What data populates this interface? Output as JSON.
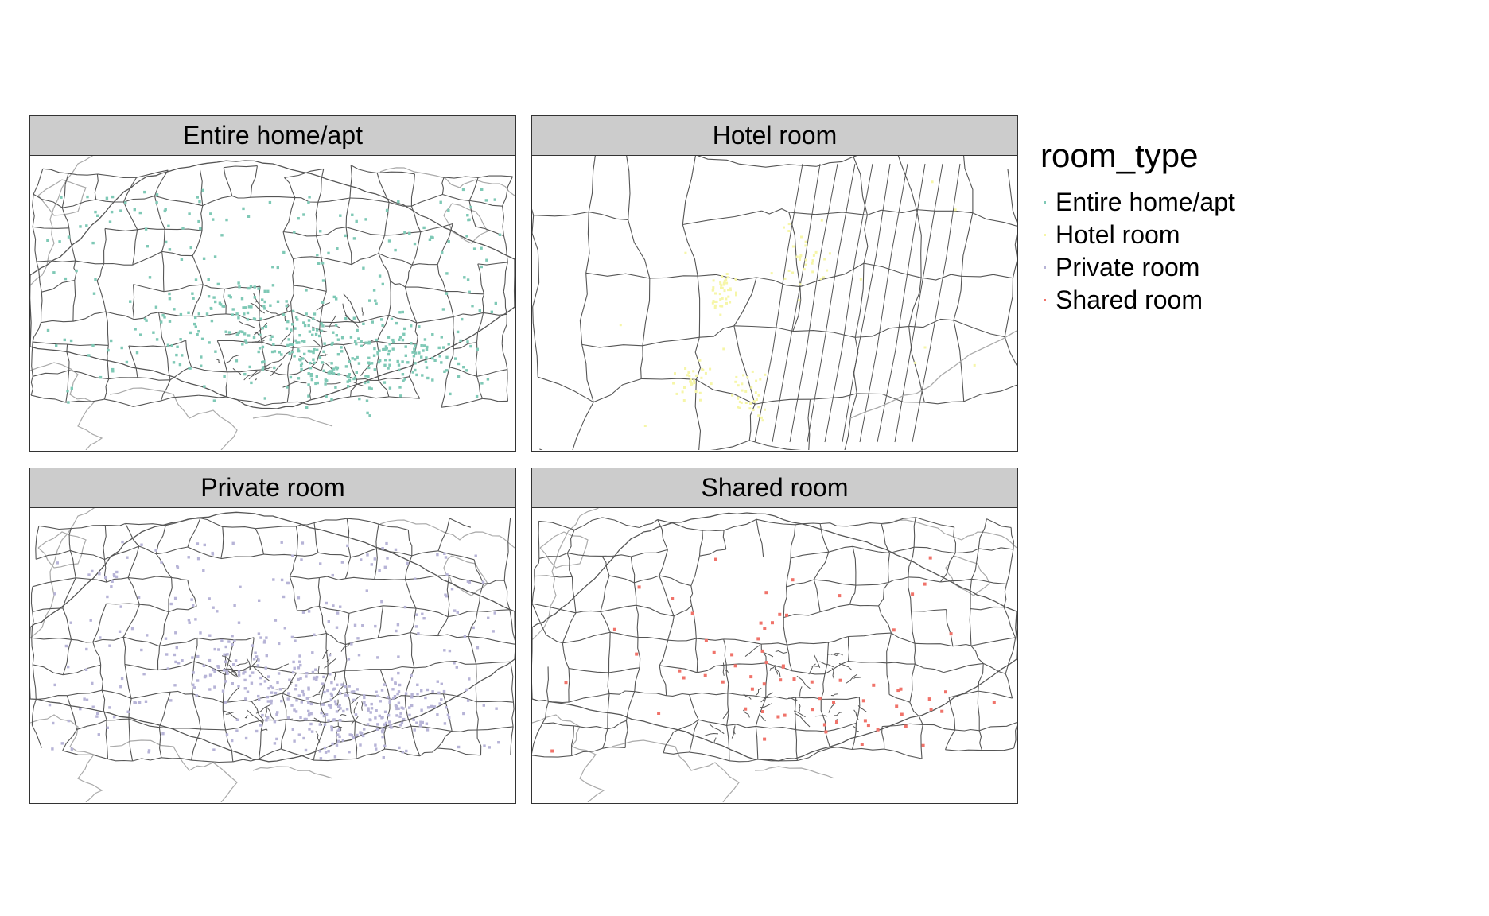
{
  "legend": {
    "title": "room_type",
    "items": [
      {
        "label": "Entire home/apt",
        "color": "#7fc9b6"
      },
      {
        "label": "Hotel room",
        "color": "#f6f6a8"
      },
      {
        "label": "Private room",
        "color": "#b7b4d7"
      },
      {
        "label": "Shared room",
        "color": "#f0736a"
      }
    ]
  },
  "panels": [
    {
      "title": "Entire home/apt",
      "color": "#7fc9b6",
      "density": "high"
    },
    {
      "title": "Hotel room",
      "color": "#f6f6a8",
      "density": "low",
      "zoomed": true
    },
    {
      "title": "Private room",
      "color": "#b7b4d7",
      "density": "high"
    },
    {
      "title": "Shared room",
      "color": "#f0736a",
      "density": "low"
    }
  ],
  "colors": {
    "strip": "#cccccc",
    "border": "#333333",
    "boundary": "#555555",
    "coast": "#aaaaaa"
  }
}
